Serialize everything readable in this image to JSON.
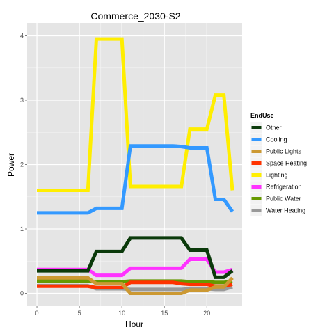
{
  "chart_data": {
    "type": "line",
    "title": "Commerce_2030-S2",
    "xlabel": "Hour",
    "ylabel": "Power",
    "xlim": [
      -1.15,
      24.15
    ],
    "ylim": [
      -0.2,
      4.2
    ],
    "xticks": [
      0,
      5,
      10,
      15,
      20
    ],
    "yticks": [
      0,
      1,
      2,
      3,
      4
    ],
    "grid": true,
    "legend": {
      "title": "EndUse",
      "placement": "right"
    },
    "x": [
      0,
      1,
      2,
      3,
      4,
      5,
      6,
      7,
      8,
      9,
      10,
      11,
      12,
      13,
      14,
      15,
      16,
      17,
      18,
      19,
      20,
      21,
      22,
      23
    ],
    "series": [
      {
        "name": "Other",
        "color": "#0b3a0b",
        "values": [
          0.35,
          0.35,
          0.35,
          0.35,
          0.35,
          0.35,
          0.35,
          0.65,
          0.65,
          0.65,
          0.65,
          0.86,
          0.86,
          0.86,
          0.86,
          0.86,
          0.86,
          0.86,
          0.67,
          0.67,
          0.67,
          0.25,
          0.25,
          0.35
        ]
      },
      {
        "name": "Cooling",
        "color": "#3399ff",
        "values": [
          1.25,
          1.25,
          1.25,
          1.25,
          1.25,
          1.25,
          1.25,
          1.32,
          1.32,
          1.32,
          1.32,
          2.29,
          2.29,
          2.29,
          2.29,
          2.29,
          2.29,
          2.28,
          2.26,
          2.26,
          2.26,
          1.46,
          1.46,
          1.27
        ]
      },
      {
        "name": "Public Lights",
        "color": "#cc9933",
        "values": [
          0.24,
          0.24,
          0.24,
          0.24,
          0.24,
          0.24,
          0.24,
          0.15,
          0.15,
          0.15,
          0.15,
          0.0,
          0.0,
          0.0,
          0.0,
          0.0,
          0.0,
          0.0,
          0.05,
          0.05,
          0.05,
          0.1,
          0.1,
          0.24
        ]
      },
      {
        "name": "Space Heating",
        "color": "#ff3300",
        "values": [
          0.11,
          0.11,
          0.11,
          0.11,
          0.11,
          0.11,
          0.11,
          0.09,
          0.09,
          0.09,
          0.09,
          0.17,
          0.17,
          0.17,
          0.17,
          0.17,
          0.17,
          0.15,
          0.14,
          0.14,
          0.14,
          0.11,
          0.11,
          0.14
        ]
      },
      {
        "name": "Lighting",
        "color": "#ffee00",
        "values": [
          1.6,
          1.6,
          1.6,
          1.6,
          1.6,
          1.6,
          1.6,
          3.95,
          3.95,
          3.95,
          3.95,
          1.66,
          1.66,
          1.66,
          1.66,
          1.66,
          1.66,
          1.66,
          2.55,
          2.55,
          2.55,
          3.08,
          3.08,
          1.6
        ]
      },
      {
        "name": "Refrigeration",
        "color": "#ff33ff",
        "values": [
          0.37,
          0.37,
          0.37,
          0.37,
          0.37,
          0.37,
          0.37,
          0.28,
          0.28,
          0.28,
          0.28,
          0.39,
          0.39,
          0.39,
          0.39,
          0.39,
          0.39,
          0.39,
          0.53,
          0.53,
          0.53,
          0.33,
          0.33,
          0.37
        ]
      },
      {
        "name": "Public Water",
        "color": "#669900",
        "values": [
          0.19,
          0.19,
          0.19,
          0.19,
          0.19,
          0.19,
          0.19,
          0.18,
          0.18,
          0.18,
          0.18,
          0.19,
          0.19,
          0.19,
          0.19,
          0.19,
          0.19,
          0.19,
          0.18,
          0.18,
          0.18,
          0.17,
          0.17,
          0.19
        ]
      },
      {
        "name": "Water Heating",
        "color": "#999999",
        "values": [
          0.12,
          0.12,
          0.12,
          0.12,
          0.12,
          0.12,
          0.12,
          0.07,
          0.07,
          0.07,
          0.07,
          0.06,
          0.06,
          0.06,
          0.06,
          0.06,
          0.06,
          0.06,
          0.07,
          0.07,
          0.07,
          0.06,
          0.06,
          0.1
        ]
      }
    ]
  }
}
